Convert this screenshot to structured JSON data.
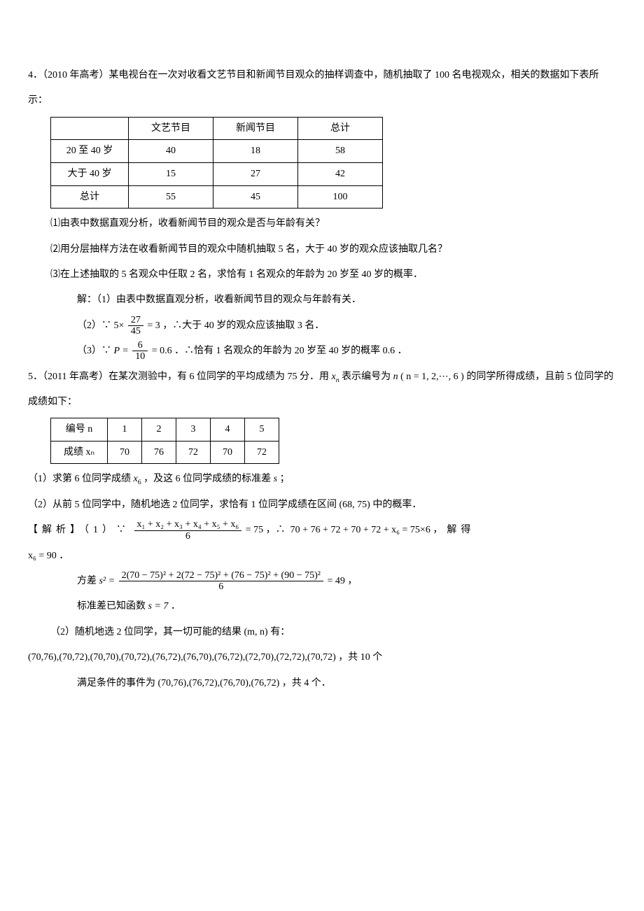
{
  "q4": {
    "stem": "4．（2010 年高考）某电视台在一次对收看文艺节目和新闻节目观众的抽样调查中，随机抽取了 100 名电视观众，相关的数据如下表所示：",
    "table": {
      "columns": [
        "",
        "文艺节目",
        "新闻节目",
        "总计"
      ],
      "rows": [
        [
          "20 至 40 岁",
          "40",
          "18",
          "58"
        ],
        [
          "大于 40 岁",
          "15",
          "27",
          "42"
        ],
        [
          "总计",
          "55",
          "45",
          "100"
        ]
      ]
    },
    "p1": "⑴由表中数据直观分析，收看新闻节目的观众是否与年龄有关？",
    "p2": "⑵用分层抽样方法在收看新闻节目的观众中随机抽取 5 名，大于 40 岁的观众应该抽取几名？",
    "p3": "⑶在上述抽取的 5 名观众中任取 2 名，求恰有 1 名观众的年龄为 20 岁至 40 岁的概率．",
    "s1": "解：（1）由表中数据直观分析，收看新闻节目的观众与年龄有关．",
    "s2a": "（2）∵",
    "s2frac": {
      "num": "27",
      "den": "45"
    },
    "s2b": "，∴大于 40 岁的观众应该抽取",
    "s2c": "名．",
    "s2v1": "5×",
    "s2v2": "= 3",
    "s2v3": " 3 ",
    "s3a": "（3）∵",
    "s3frac": {
      "num": "6",
      "den": "10"
    },
    "s3b": "．∴恰有 1 名观众的年龄为 20 岁至 40 岁的概率",
    "s3c": "．",
    "s3v1": "P =",
    "s3v2": "= 0.6 ",
    "s3v3": " 0.6 "
  },
  "q5": {
    "stem_a": "5．（2011 年高考）在某次测验中，有 6 位同学的平均成绩为 75 分．用",
    "stem_b": "表示编号为",
    "stem_c": "的同学所得成绩，且前 5 位同学的成绩如下：",
    "xn": "x",
    "xn_sub": "n",
    "nn": "n",
    "nrange": "( n = 1, 2,⋯, 6 )",
    "table": {
      "columns": [
        "编号 n",
        "1",
        "2",
        "3",
        "4",
        "5"
      ],
      "rows": [
        [
          "成绩 xₙ",
          "70",
          "76",
          "72",
          "70",
          "72"
        ]
      ]
    },
    "p1a": "（1）求第 6 位同学成绩",
    "p1b": "，及这 6 位同学成绩的标准差",
    "p1c": "；",
    "p2a": "（2）从前 5 位同学中，随机地选 2 位同学，求恰有 1 位同学成绩在区间",
    "p2b": "中的概率．",
    "interval": "(68, 75)",
    "a1_lead": "【解析】（1）∵",
    "a1_frac_num": "x₁ + x₂ + x₃ + x₄ + x₅ + x₆",
    "a1_frac_den": "6",
    "a1_eq1": "= 75",
    "a1_mid": "，∴",
    "a1_eq2": "70 + 76 + 72 + 70 + 72 + x₆ = 75×6",
    "a1_tail": "，解得",
    "a1_res": "x₆ = 90 ．",
    "a2_lead": "方差",
    "a2_s2": "s² =",
    "a2_frac_num": "2(70 − 75)² + 2(72 − 75)² + (76 − 75)² + (90 − 75)²",
    "a2_frac_den": "6",
    "a2_eq": "= 49",
    "a2_tail": "，",
    "a3": "标准差已知函数",
    "a3_eq": "s = 7",
    "a3_tail": "．",
    "a4a": "（2）随机地选 2 位同学，其一切可能的结果",
    "a4mn": "(m, n)",
    "a4b": "有：",
    "a5_list": "(70,76),(70,72),(70,70),(70,72),(76,72),(76,70),(76,72),(72,70),(72,72),(70,72)",
    "a5_tail": "，共",
    "a5_n": "10",
    "a5_unit": "个",
    "a6_lead": "满足条件的事件为",
    "a6_list": "(70,76),(76,72),(76,70),(76,72)",
    "a6_tail": "，共",
    "a6_n": "4",
    "a6_unit": "个．"
  }
}
